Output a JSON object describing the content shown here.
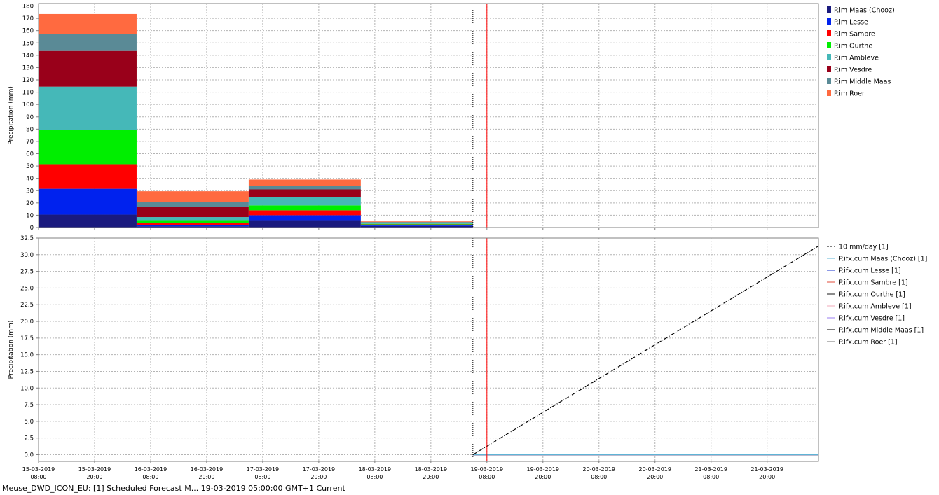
{
  "status_bar": {
    "text": "Meuse_DWD_ICON_EU: [1] Scheduled Forecast M...  19-03-2019 05:00:00 GMT+1 Current"
  },
  "time_axis": {
    "start": "2019-03-15T08:00",
    "end": "2019-03-22T07:00",
    "tick_labels": [
      {
        "t": "2019-03-15T08:00",
        "line1": "15-03-2019",
        "line2": "08:00"
      },
      {
        "t": "2019-03-15T20:00",
        "line1": "15-03-2019",
        "line2": "20:00"
      },
      {
        "t": "2019-03-16T08:00",
        "line1": "16-03-2019",
        "line2": "08:00"
      },
      {
        "t": "2019-03-16T20:00",
        "line1": "16-03-2019",
        "line2": "20:00"
      },
      {
        "t": "2019-03-17T08:00",
        "line1": "17-03-2019",
        "line2": "08:00"
      },
      {
        "t": "2019-03-17T20:00",
        "line1": "17-03-2019",
        "line2": "20:00"
      },
      {
        "t": "2019-03-18T08:00",
        "line1": "18-03-2019",
        "line2": "08:00"
      },
      {
        "t": "2019-03-18T20:00",
        "line1": "18-03-2019",
        "line2": "20:00"
      },
      {
        "t": "2019-03-19T08:00",
        "line1": "19-03-2019",
        "line2": "08:00"
      },
      {
        "t": "2019-03-19T20:00",
        "line1": "19-03-2019",
        "line2": "20:00"
      },
      {
        "t": "2019-03-20T08:00",
        "line1": "20-03-2019",
        "line2": "08:00"
      },
      {
        "t": "2019-03-20T20:00",
        "line1": "20-03-2019",
        "line2": "20:00"
      },
      {
        "t": "2019-03-21T08:00",
        "line1": "21-03-2019",
        "line2": "08:00"
      },
      {
        "t": "2019-03-21T20:00",
        "line1": "21-03-2019",
        "line2": "20:00"
      }
    ],
    "forecast_start": "2019-03-19T05:00",
    "current_time": "2019-03-19T08:00",
    "current_time_color": "#ff0000"
  },
  "chart_data": [
    {
      "type": "bar",
      "stacked": true,
      "ylabel": "Precipitation (mm)",
      "ylim": [
        0,
        182
      ],
      "yticks": [
        0,
        10,
        20,
        30,
        40,
        50,
        60,
        70,
        80,
        90,
        100,
        110,
        120,
        130,
        140,
        150,
        160,
        170,
        180
      ],
      "grid": true,
      "legend_position": "right",
      "bins": [
        {
          "start": "2019-03-15T08:00",
          "end": "2019-03-16T05:00"
        },
        {
          "start": "2019-03-16T05:00",
          "end": "2019-03-17T05:00"
        },
        {
          "start": "2019-03-17T05:00",
          "end": "2019-03-18T05:00"
        },
        {
          "start": "2019-03-18T05:00",
          "end": "2019-03-19T05:00"
        }
      ],
      "series": [
        {
          "name": "P.im Maas (Chooz)",
          "color": "#1a1a7e",
          "values": [
            10.5,
            1.0,
            6.0,
            1.2
          ]
        },
        {
          "name": "P.im Lesse",
          "color": "#0022ee",
          "values": [
            21.0,
            1.2,
            4.0,
            0.8
          ]
        },
        {
          "name": "P.im Sambre",
          "color": "#ff0000",
          "values": [
            20.0,
            1.3,
            4.0,
            0.5
          ]
        },
        {
          "name": "P.im Ourthe",
          "color": "#00ee00",
          "values": [
            28.0,
            2.5,
            4.0,
            0.5
          ]
        },
        {
          "name": "P.im Ambleve",
          "color": "#45b8b8",
          "values": [
            35.0,
            2.5,
            7.0,
            0.5
          ]
        },
        {
          "name": "P.im Vesdre",
          "color": "#99001a",
          "values": [
            29.0,
            8.5,
            6.0,
            0.5
          ]
        },
        {
          "name": "P.im Middle Maas",
          "color": "#5a8a96",
          "values": [
            14.0,
            3.5,
            3.0,
            0.5
          ]
        },
        {
          "name": "P.im Roer",
          "color": "#ff6a40",
          "values": [
            16.0,
            9.0,
            5.0,
            0.5
          ]
        }
      ]
    },
    {
      "type": "line",
      "ylabel": "Precipitation (mm)",
      "ylim": [
        -1.0,
        32.5
      ],
      "yticks": [
        0.0,
        2.5,
        5.0,
        7.5,
        10.0,
        12.5,
        15.0,
        17.5,
        20.0,
        22.5,
        25.0,
        27.5,
        30.0,
        32.5
      ],
      "ytick_labels": [
        "0.0",
        "2.5",
        "5.0",
        "7.5",
        "10.0",
        "12.5",
        "15.0",
        "17.5",
        "20.0",
        "22.5",
        "25.0",
        "27.5",
        "30.0",
        "32.5"
      ],
      "grid": true,
      "legend_position": "right",
      "series": [
        {
          "name": "10 mm/day [1]",
          "color": "#000000",
          "dash": true,
          "points": [
            [
              "2019-03-19T05:00",
              0.0
            ],
            [
              "2019-03-22T07:00",
              31.3
            ]
          ]
        },
        {
          "name": "P.ifx.cum Maas (Chooz) [1]",
          "color": "#5fb4d6",
          "dash": false,
          "points": [
            [
              "2019-03-19T05:00",
              0.0
            ],
            [
              "2019-03-22T07:00",
              0.0
            ]
          ]
        },
        {
          "name": "P.ifx.cum Lesse [1]",
          "color": "#1a33cc",
          "dash": false,
          "points": [
            [
              "2019-03-19T05:00",
              0.0
            ],
            [
              "2019-03-22T07:00",
              0.0
            ]
          ]
        },
        {
          "name": "P.ifx.cum Sambre [1]",
          "color": "#e04b3a",
          "dash": false,
          "points": [
            [
              "2019-03-19T05:00",
              0.0
            ],
            [
              "2019-03-22T07:00",
              0.0
            ]
          ]
        },
        {
          "name": "P.ifx.cum Ourthe [1]",
          "color": "#1a1a1a",
          "dash": false,
          "points": [
            [
              "2019-03-19T05:00",
              0.0
            ],
            [
              "2019-03-22T07:00",
              0.0
            ]
          ]
        },
        {
          "name": "P.ifx.cum Ambleve [1]",
          "color": "#f2a8b8",
          "dash": false,
          "points": [
            [
              "2019-03-19T05:00",
              0.0
            ],
            [
              "2019-03-22T07:00",
              0.0
            ]
          ]
        },
        {
          "name": "P.ifx.cum Vesdre [1]",
          "color": "#9a7cf0",
          "dash": false,
          "points": [
            [
              "2019-03-19T05:00",
              0.0
            ],
            [
              "2019-03-22T07:00",
              0.0
            ]
          ]
        },
        {
          "name": "P.ifx.cum Middle Maas [1]",
          "color": "#000000",
          "dash": false,
          "points": [
            [
              "2019-03-19T05:00",
              0.0
            ],
            [
              "2019-03-22T07:00",
              0.0
            ]
          ]
        },
        {
          "name": "P.ifx.cum Roer [1]",
          "color": "#707070",
          "dash": false,
          "points": [
            [
              "2019-03-19T05:00",
              0.0
            ],
            [
              "2019-03-22T07:00",
              0.0
            ]
          ]
        }
      ]
    }
  ]
}
